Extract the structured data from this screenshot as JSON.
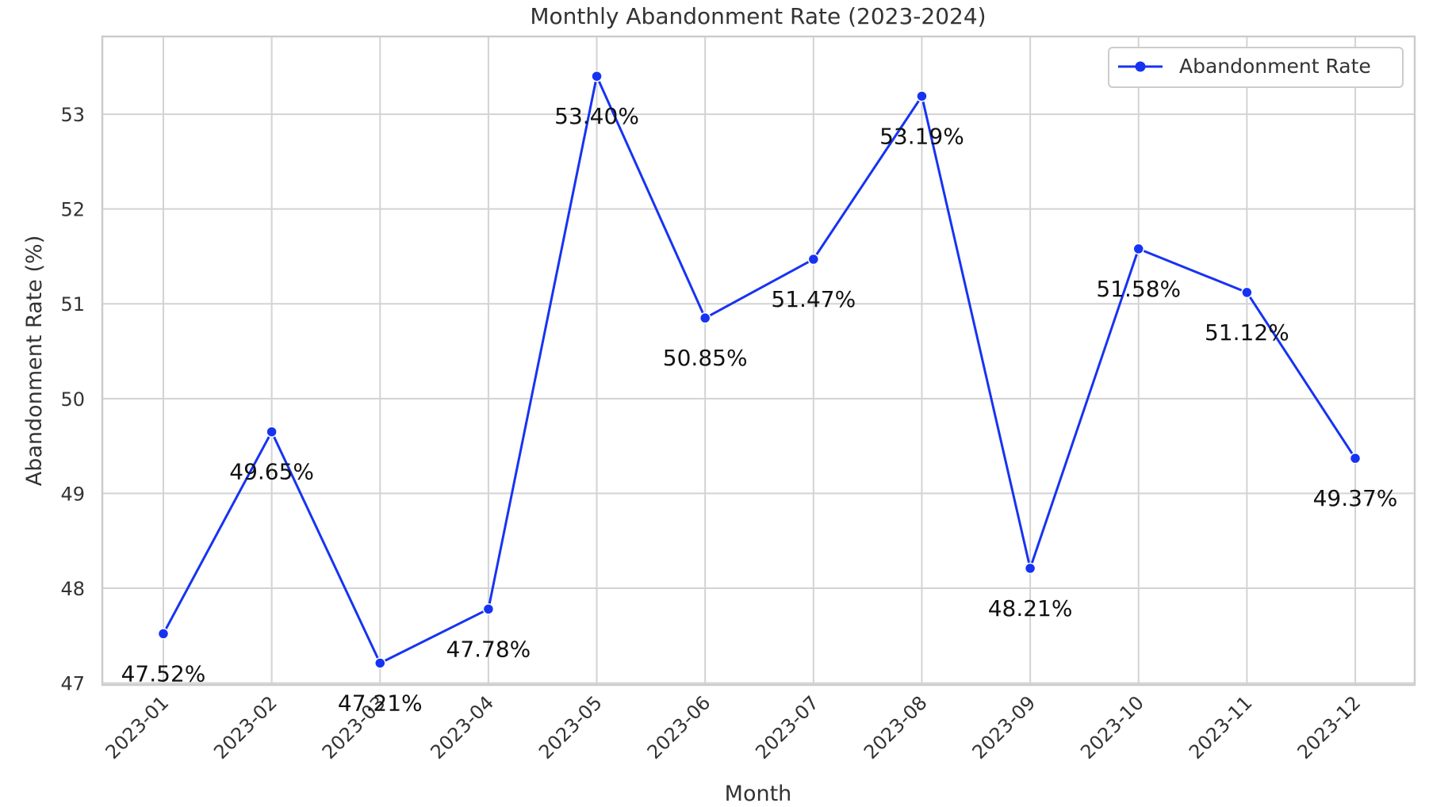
{
  "chart_data": {
    "type": "line",
    "title": "Monthly Abandonment Rate (2023-2024)",
    "xlabel": "Month",
    "ylabel": "Abandonment Rate (%)",
    "categories": [
      "2023-01",
      "2023-02",
      "2023-03",
      "2023-04",
      "2023-05",
      "2023-06",
      "2023-07",
      "2023-08",
      "2023-09",
      "2023-10",
      "2023-11",
      "2023-12"
    ],
    "series": [
      {
        "name": "Abandonment Rate",
        "values": [
          47.52,
          49.65,
          47.21,
          47.78,
          53.4,
          50.85,
          51.47,
          53.19,
          48.21,
          51.58,
          51.12,
          49.37
        ],
        "labels": [
          "47.52%",
          "49.65%",
          "47.21%",
          "47.78%",
          "53.40%",
          "50.85%",
          "51.47%",
          "53.19%",
          "48.21%",
          "51.58%",
          "51.12%",
          "49.37%"
        ]
      }
    ],
    "ylim": [
      46.98,
      53.82
    ],
    "yticks": [
      47,
      48,
      49,
      50,
      51,
      52,
      53
    ],
    "grid": true,
    "legend_position": "top-right",
    "line_color": "#1733f2"
  }
}
